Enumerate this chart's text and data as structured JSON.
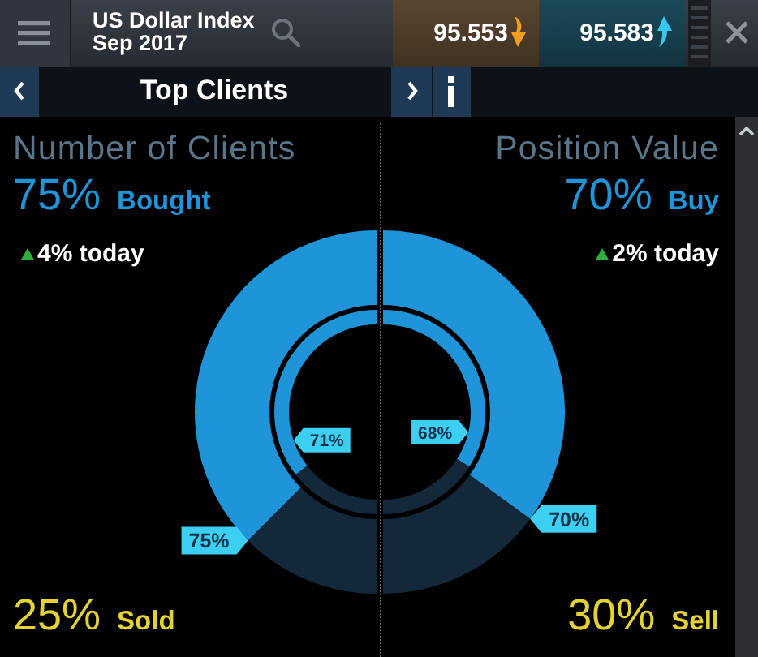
{
  "chart_data": [
    {
      "type": "other",
      "title": "Top Clients",
      "annotations": [
        "US Dollar Index",
        "Sep 2017",
        "95.553",
        "95.583"
      ]
    },
    {
      "type": "donut",
      "title": "Number of Clients",
      "categories": [
        null,
        null
      ],
      "colors": [
        "#1f94d8",
        "#13283a"
      ],
      "series": [
        {
          "values": [
            75,
            25
          ],
          "value_labels": [
            "75%",
            null
          ]
        },
        {
          "values": [
            71,
            29
          ],
          "value_labels": [
            "71%",
            null
          ]
        }
      ],
      "annotations": [
        "75% Bought",
        "4% today",
        "25% Sold"
      ]
    },
    {
      "type": "donut",
      "title": "Position Value",
      "categories": [
        null,
        null
      ],
      "colors": [
        "#1f94d8",
        "#13283a"
      ],
      "series": [
        {
          "values": [
            70,
            30
          ],
          "value_labels": [
            "70%",
            null
          ]
        },
        {
          "values": [
            68,
            32
          ],
          "value_labels": [
            "68%",
            null
          ]
        }
      ],
      "annotations": [
        "70% Buy",
        "2% today",
        "30% Sell"
      ]
    }
  ]
}
